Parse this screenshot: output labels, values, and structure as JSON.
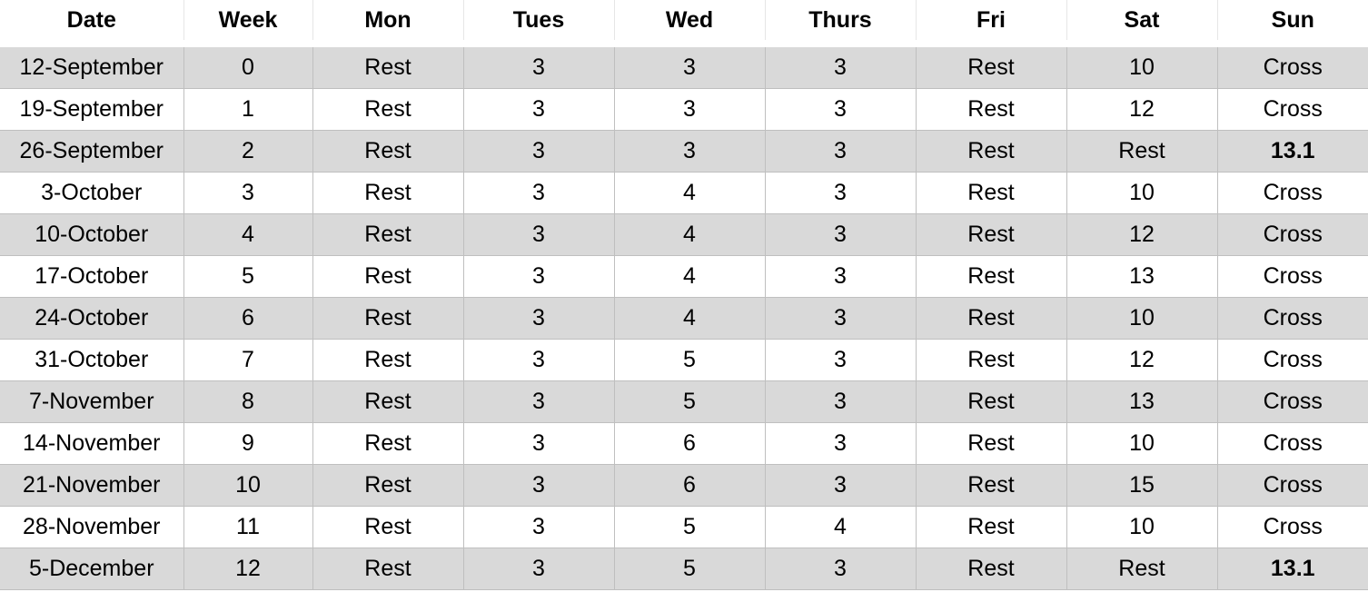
{
  "table": {
    "columns": [
      "Date",
      "Week",
      "Mon",
      "Tues",
      "Wed",
      "Thurs",
      "Fri",
      "Sat",
      "Sun"
    ],
    "rows": [
      [
        "12-September",
        "0",
        "Rest",
        "3",
        "3",
        "3",
        "Rest",
        "10",
        "Cross"
      ],
      [
        "19-September",
        "1",
        "Rest",
        "3",
        "3",
        "3",
        "Rest",
        "12",
        "Cross"
      ],
      [
        "26-September",
        "2",
        "Rest",
        "3",
        "3",
        "3",
        "Rest",
        "Rest",
        "13.1"
      ],
      [
        "3-October",
        "3",
        "Rest",
        "3",
        "4",
        "3",
        "Rest",
        "10",
        "Cross"
      ],
      [
        "10-October",
        "4",
        "Rest",
        "3",
        "4",
        "3",
        "Rest",
        "12",
        "Cross"
      ],
      [
        "17-October",
        "5",
        "Rest",
        "3",
        "4",
        "3",
        "Rest",
        "13",
        "Cross"
      ],
      [
        "24-October",
        "6",
        "Rest",
        "3",
        "4",
        "3",
        "Rest",
        "10",
        "Cross"
      ],
      [
        "31-October",
        "7",
        "Rest",
        "3",
        "5",
        "3",
        "Rest",
        "12",
        "Cross"
      ],
      [
        "7-November",
        "8",
        "Rest",
        "3",
        "5",
        "3",
        "Rest",
        "13",
        "Cross"
      ],
      [
        "14-November",
        "9",
        "Rest",
        "3",
        "6",
        "3",
        "Rest",
        "10",
        "Cross"
      ],
      [
        "21-November",
        "10",
        "Rest",
        "3",
        "6",
        "3",
        "Rest",
        "15",
        "Cross"
      ],
      [
        "28-November",
        "11",
        "Rest",
        "3",
        "5",
        "4",
        "Rest",
        "10",
        "Cross"
      ],
      [
        "5-December",
        "12",
        "Rest",
        "3",
        "5",
        "3",
        "Rest",
        "Rest",
        "13.1"
      ]
    ],
    "bold_cells": [
      "2.8",
      "12.8"
    ],
    "colors": {
      "shaded_row": "#d9d9d9",
      "plain_row": "#ffffff",
      "grid_line": "#bfbfbf",
      "header_rule": "#000000"
    }
  }
}
